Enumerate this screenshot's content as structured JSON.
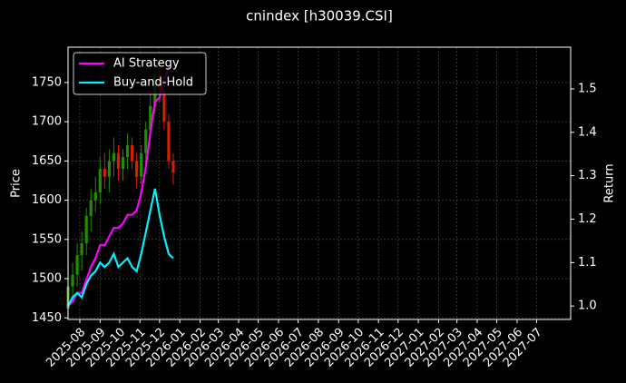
{
  "chart_data": {
    "type": "candlestick",
    "title": "cnindex [h30039.CSI]",
    "ylabel": "Price",
    "y2label": "Return",
    "x": [
      "2025-07-14",
      "2025-07-21",
      "2025-07-28",
      "2025-08-04",
      "2025-08-11",
      "2025-08-18",
      "2025-08-25",
      "2025-09-01",
      "2025-09-08",
      "2025-09-15",
      "2025-09-22",
      "2025-09-29",
      "2025-10-06",
      "2025-10-13",
      "2025-10-20",
      "2025-10-27",
      "2025-11-03",
      "2025-11-10",
      "2025-11-17",
      "2025-11-24",
      "2025-12-01",
      "2025-12-08",
      "2025-12-15",
      "2025-12-22"
    ],
    "open": [
      1462,
      1490,
      1505,
      1530,
      1545,
      1580,
      1600,
      1610,
      1640,
      1630,
      1650,
      1660,
      1640,
      1655,
      1670,
      1650,
      1630,
      1660,
      1690,
      1720,
      1760,
      1740,
      1700,
      1650
    ],
    "high": [
      1500,
      1520,
      1545,
      1560,
      1590,
      1615,
      1630,
      1655,
      1660,
      1665,
      1680,
      1670,
      1665,
      1685,
      1680,
      1660,
      1670,
      1700,
      1735,
      1775,
      1780,
      1750,
      1710,
      1660
    ],
    "low": [
      1455,
      1475,
      1490,
      1510,
      1530,
      1560,
      1585,
      1595,
      1615,
      1610,
      1630,
      1625,
      1625,
      1640,
      1640,
      1615,
      1620,
      1645,
      1680,
      1710,
      1725,
      1690,
      1640,
      1620
    ],
    "close": [
      1490,
      1505,
      1530,
      1545,
      1580,
      1600,
      1610,
      1640,
      1630,
      1650,
      1660,
      1640,
      1655,
      1670,
      1650,
      1630,
      1660,
      1690,
      1720,
      1760,
      1740,
      1700,
      1650,
      1635
    ],
    "up_color": "#1f8f00",
    "down_color": "#d42000",
    "series": [
      {
        "name": "AI Strategy",
        "color": "#ff00ff",
        "axis": "y2",
        "values": [
          1.0,
          1.01,
          1.03,
          1.03,
          1.06,
          1.09,
          1.11,
          1.14,
          1.14,
          1.16,
          1.18,
          1.18,
          1.19,
          1.21,
          1.21,
          1.22,
          1.26,
          1.32,
          1.4,
          1.47,
          1.48,
          1.52,
          1.55,
          1.55
        ]
      },
      {
        "name": "Buy-and-Hold",
        "color": "#00f0ff",
        "axis": "y2",
        "values": [
          1.0,
          1.02,
          1.03,
          1.02,
          1.05,
          1.07,
          1.08,
          1.1,
          1.09,
          1.1,
          1.12,
          1.09,
          1.1,
          1.11,
          1.09,
          1.08,
          1.12,
          1.17,
          1.22,
          1.27,
          1.21,
          1.16,
          1.12,
          1.11
        ]
      }
    ],
    "xlim": [
      "2025-07-14",
      "2027-08-22"
    ],
    "xticks": [
      {
        "value": "2025-08-01",
        "label": "2025-08"
      },
      {
        "value": "2025-09-01",
        "label": "2025-09"
      },
      {
        "value": "2025-10-01",
        "label": "2025-10"
      },
      {
        "value": "2025-11-01",
        "label": "2025-11"
      },
      {
        "value": "2025-12-01",
        "label": "2025-12"
      },
      {
        "value": "2026-01-01",
        "label": "2026-01"
      },
      {
        "value": "2026-02-01",
        "label": "2026-02"
      },
      {
        "value": "2026-03-01",
        "label": "2026-03"
      },
      {
        "value": "2026-04-01",
        "label": "2026-04"
      },
      {
        "value": "2026-05-01",
        "label": "2026-05"
      },
      {
        "value": "2026-06-01",
        "label": "2026-06"
      },
      {
        "value": "2026-07-01",
        "label": "2026-07"
      },
      {
        "value": "2026-08-01",
        "label": "2026-08"
      },
      {
        "value": "2026-09-01",
        "label": "2026-09"
      },
      {
        "value": "2026-10-01",
        "label": "2026-10"
      },
      {
        "value": "2026-11-01",
        "label": "2026-11"
      },
      {
        "value": "2026-12-01",
        "label": "2026-12"
      },
      {
        "value": "2027-01-01",
        "label": "2027-01"
      },
      {
        "value": "2027-02-01",
        "label": "2027-02"
      },
      {
        "value": "2027-03-01",
        "label": "2027-03"
      },
      {
        "value": "2027-04-01",
        "label": "2027-04"
      },
      {
        "value": "2027-05-01",
        "label": "2027-05"
      },
      {
        "value": "2027-06-01",
        "label": "2027-06"
      },
      {
        "value": "2027-07-01",
        "label": "2027-07"
      }
    ],
    "ylim": [
      1448,
      1795
    ],
    "yticks": [
      1450,
      1500,
      1550,
      1600,
      1650,
      1700,
      1750
    ],
    "y2lim": [
      0.969,
      1.596
    ],
    "y2ticks": [
      {
        "value": 1,
        "label": "1.0"
      },
      1.1,
      1.2,
      1.3,
      1.4,
      1.5
    ],
    "grid": true,
    "legend": "upper-left"
  }
}
